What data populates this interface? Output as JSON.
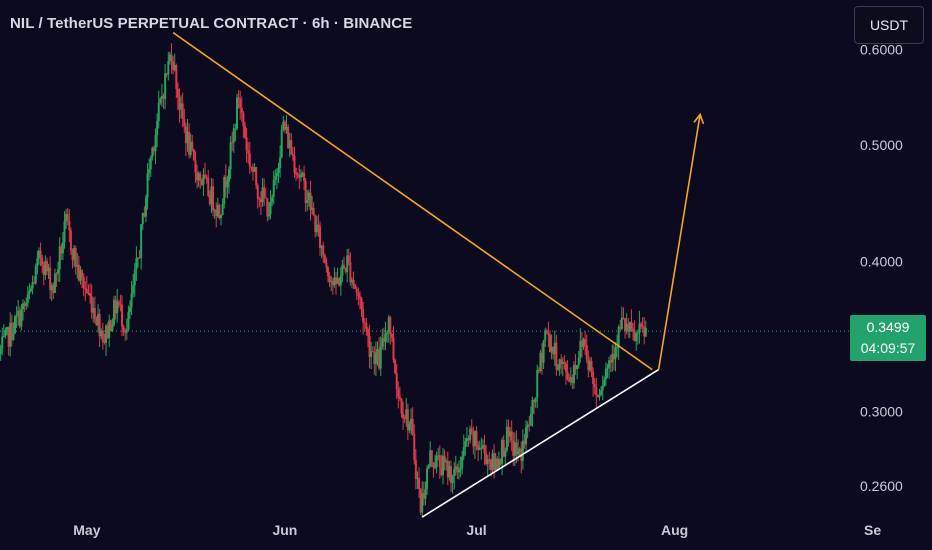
{
  "header": {
    "title": "NIL / TetherUS PERPETUAL CONTRACT · 6h · BINANCE",
    "currency_button": "USDT"
  },
  "price_tag": {
    "price": "0.3499",
    "countdown": "04:09:57"
  },
  "colors": {
    "background": "#0b0a1f",
    "up": "#26a65b",
    "down": "#e0394a",
    "resistance_line": "#f5a623",
    "support_line": "#ffffff",
    "projection_arrow": "#f5a623",
    "last_price_line": "#22a36b"
  },
  "chart_data": {
    "type": "candlestick",
    "title": "NIL / TetherUS PERPETUAL CONTRACT · 6h · BINANCE",
    "y_scale": "log",
    "ylim": [
      0.23,
      0.66
    ],
    "y_ticks": [
      0.6,
      0.5,
      0.4,
      0.3,
      0.26
    ],
    "y_tick_labels": [
      "0.6000",
      "0.5000",
      "0.4000",
      "0.3000",
      "0.2600"
    ],
    "x_tick_labels": [
      "May",
      "Jun",
      "Jul",
      "Aug",
      "Se"
    ],
    "x_ticks_day": [
      0,
      31,
      61,
      92,
      123
    ],
    "xlim_day": [
      -13.6,
      132.3
    ],
    "last_price": 0.3499,
    "candle_interval": "6h",
    "price_path": [
      {
        "day": -13.5,
        "price": 0.335
      },
      {
        "day": -11,
        "price": 0.355
      },
      {
        "day": -9,
        "price": 0.37
      },
      {
        "day": -7,
        "price": 0.405
      },
      {
        "day": -5,
        "price": 0.38
      },
      {
        "day": -3,
        "price": 0.43
      },
      {
        "day": -1,
        "price": 0.39
      },
      {
        "day": 1,
        "price": 0.37
      },
      {
        "day": 3,
        "price": 0.345
      },
      {
        "day": 5,
        "price": 0.37
      },
      {
        "day": 6.5,
        "price": 0.35
      },
      {
        "day": 8.5,
        "price": 0.41
      },
      {
        "day": 10,
        "price": 0.48
      },
      {
        "day": 12,
        "price": 0.55
      },
      {
        "day": 13.5,
        "price": 0.6
      },
      {
        "day": 15,
        "price": 0.53
      },
      {
        "day": 17,
        "price": 0.48
      },
      {
        "day": 19,
        "price": 0.46
      },
      {
        "day": 21,
        "price": 0.44
      },
      {
        "day": 23,
        "price": 0.5
      },
      {
        "day": 24,
        "price": 0.55
      },
      {
        "day": 25.5,
        "price": 0.49
      },
      {
        "day": 27,
        "price": 0.46
      },
      {
        "day": 29,
        "price": 0.44
      },
      {
        "day": 31,
        "price": 0.52
      },
      {
        "day": 33,
        "price": 0.48
      },
      {
        "day": 35,
        "price": 0.45
      },
      {
        "day": 37,
        "price": 0.41
      },
      {
        "day": 39,
        "price": 0.38
      },
      {
        "day": 41,
        "price": 0.4
      },
      {
        "day": 43,
        "price": 0.37
      },
      {
        "day": 44.5,
        "price": 0.34
      },
      {
        "day": 46,
        "price": 0.33
      },
      {
        "day": 47.5,
        "price": 0.36
      },
      {
        "day": 49,
        "price": 0.31
      },
      {
        "day": 51,
        "price": 0.29
      },
      {
        "day": 52.5,
        "price": 0.25
      },
      {
        "day": 54,
        "price": 0.275
      },
      {
        "day": 56,
        "price": 0.27
      },
      {
        "day": 58,
        "price": 0.265
      },
      {
        "day": 60,
        "price": 0.285
      },
      {
        "day": 62,
        "price": 0.28
      },
      {
        "day": 64,
        "price": 0.27
      },
      {
        "day": 66,
        "price": 0.285
      },
      {
        "day": 68,
        "price": 0.275
      },
      {
        "day": 70,
        "price": 0.3
      },
      {
        "day": 72,
        "price": 0.35
      },
      {
        "day": 74,
        "price": 0.33
      },
      {
        "day": 76,
        "price": 0.32
      },
      {
        "day": 78,
        "price": 0.345
      },
      {
        "day": 80,
        "price": 0.31
      },
      {
        "day": 82,
        "price": 0.33
      },
      {
        "day": 84,
        "price": 0.355
      },
      {
        "day": 86,
        "price": 0.345
      },
      {
        "day": 87.5,
        "price": 0.3499
      }
    ],
    "trendlines": [
      {
        "name": "descending resistance",
        "from": {
          "day": 13.5,
          "price": 0.62
        },
        "to": {
          "day": 88.5,
          "price": 0.325
        }
      },
      {
        "name": "ascending support",
        "from": {
          "day": 52.5,
          "price": 0.245
        },
        "to": {
          "day": 89.5,
          "price": 0.325
        }
      }
    ],
    "projection_arrow": {
      "from": {
        "day": 89.5,
        "price": 0.325
      },
      "to": {
        "day": 96,
        "price": 0.53
      }
    }
  }
}
